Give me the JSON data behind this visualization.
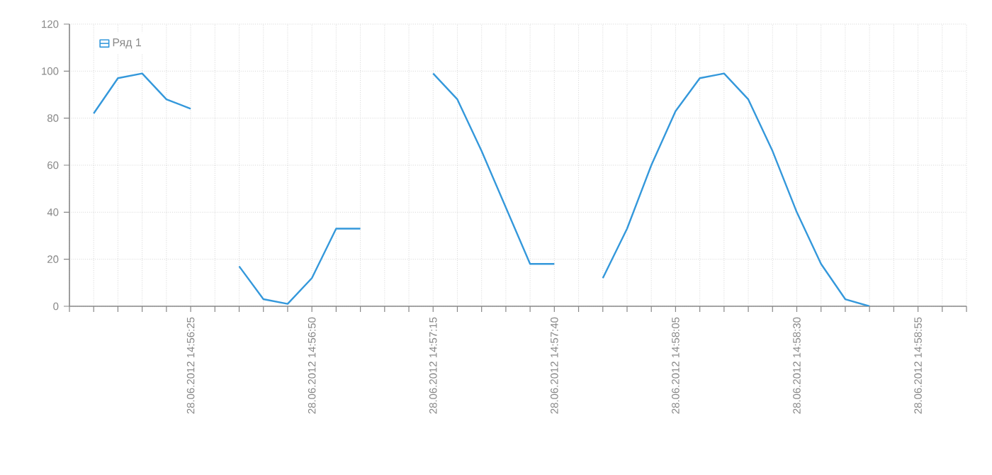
{
  "chart_data": {
    "type": "line",
    "x": [
      "2012-06-28T14:56:05",
      "2012-06-28T14:56:10",
      "2012-06-28T14:56:15",
      "2012-06-28T14:56:20",
      "2012-06-28T14:56:25",
      "2012-06-28T14:56:30",
      "2012-06-28T14:56:35",
      "2012-06-28T14:56:40",
      "2012-06-28T14:56:45",
      "2012-06-28T14:56:50",
      "2012-06-28T14:56:55",
      "2012-06-28T14:57:00",
      "2012-06-28T14:57:05",
      "2012-06-28T14:57:10",
      "2012-06-28T14:57:15",
      "2012-06-28T14:57:20",
      "2012-06-28T14:57:25",
      "2012-06-28T14:57:30",
      "2012-06-28T14:57:35",
      "2012-06-28T14:57:40",
      "2012-06-28T14:57:45",
      "2012-06-28T14:57:50",
      "2012-06-28T14:57:55",
      "2012-06-28T14:58:00",
      "2012-06-28T14:58:05",
      "2012-06-28T14:58:10",
      "2012-06-28T14:58:15",
      "2012-06-28T14:58:20",
      "2012-06-28T14:58:25",
      "2012-06-28T14:58:30",
      "2012-06-28T14:58:35",
      "2012-06-28T14:58:40",
      "2012-06-28T14:58:45"
    ],
    "series": [
      {
        "name": "Ряд 1",
        "color": "#3498db",
        "values": [
          82,
          97,
          99,
          88,
          84,
          null,
          17,
          3,
          1,
          12,
          33,
          33,
          null,
          null,
          99,
          88,
          66,
          42,
          18,
          18,
          null,
          12,
          33,
          60,
          83,
          97,
          99,
          88,
          66,
          40,
          18,
          3,
          0
        ]
      }
    ],
    "xlim": [
      "2012-06-28T14:56:00",
      "2012-06-28T14:59:05"
    ],
    "xticks": [
      {
        "value": "2012-06-28T14:56:00",
        "label": null
      },
      {
        "value": "2012-06-28T14:56:05",
        "label": null
      },
      {
        "value": "2012-06-28T14:56:10",
        "label": null
      },
      {
        "value": "2012-06-28T14:56:15",
        "label": null
      },
      {
        "value": "2012-06-28T14:56:20",
        "label": null
      },
      {
        "value": "2012-06-28T14:56:25",
        "label": "28.06.2012 14:56:25"
      },
      {
        "value": "2012-06-28T14:56:30",
        "label": null
      },
      {
        "value": "2012-06-28T14:56:35",
        "label": null
      },
      {
        "value": "2012-06-28T14:56:40",
        "label": null
      },
      {
        "value": "2012-06-28T14:56:45",
        "label": null
      },
      {
        "value": "2012-06-28T14:56:50",
        "label": "28.06.2012 14:56:50"
      },
      {
        "value": "2012-06-28T14:56:55",
        "label": null
      },
      {
        "value": "2012-06-28T14:57:00",
        "label": null
      },
      {
        "value": "2012-06-28T14:57:05",
        "label": null
      },
      {
        "value": "2012-06-28T14:57:10",
        "label": null
      },
      {
        "value": "2012-06-28T14:57:15",
        "label": "28.06.2012 14:57:15"
      },
      {
        "value": "2012-06-28T14:57:20",
        "label": null
      },
      {
        "value": "2012-06-28T14:57:25",
        "label": null
      },
      {
        "value": "2012-06-28T14:57:30",
        "label": null
      },
      {
        "value": "2012-06-28T14:57:35",
        "label": null
      },
      {
        "value": "2012-06-28T14:57:40",
        "label": "28.06.2012 14:57:40"
      },
      {
        "value": "2012-06-28T14:57:45",
        "label": null
      },
      {
        "value": "2012-06-28T14:57:50",
        "label": null
      },
      {
        "value": "2012-06-28T14:57:55",
        "label": null
      },
      {
        "value": "2012-06-28T14:58:00",
        "label": null
      },
      {
        "value": "2012-06-28T14:58:05",
        "label": "28.06.2012 14:58:05"
      },
      {
        "value": "2012-06-28T14:58:10",
        "label": null
      },
      {
        "value": "2012-06-28T14:58:15",
        "label": null
      },
      {
        "value": "2012-06-28T14:58:20",
        "label": null
      },
      {
        "value": "2012-06-28T14:58:25",
        "label": null
      },
      {
        "value": "2012-06-28T14:58:30",
        "label": "28.06.2012 14:58:30"
      },
      {
        "value": "2012-06-28T14:58:35",
        "label": null
      },
      {
        "value": "2012-06-28T14:58:40",
        "label": null
      },
      {
        "value": "2012-06-28T14:58:45",
        "label": null
      },
      {
        "value": "2012-06-28T14:58:50",
        "label": null
      },
      {
        "value": "2012-06-28T14:58:55",
        "label": "28.06.2012 14:58:55"
      },
      {
        "value": "2012-06-28T14:59:00",
        "label": null
      },
      {
        "value": "2012-06-28T14:59:05",
        "label": null
      }
    ],
    "ylim": [
      0,
      120
    ],
    "yticks": [
      0,
      20,
      40,
      60,
      80,
      100,
      120
    ],
    "grid": true,
    "legend": "top left",
    "marker": "none",
    "line_style": "solid"
  }
}
